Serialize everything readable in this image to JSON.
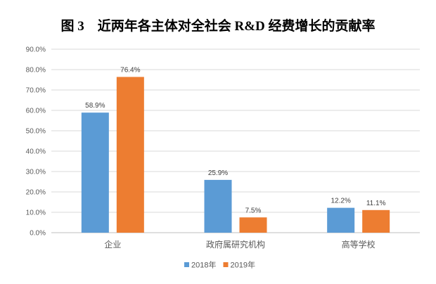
{
  "chart_data": {
    "type": "bar",
    "title": "图 3　近两年各主体对全社会 R&D 经费增长的贡献率",
    "categories": [
      "企业",
      "政府属研究机构",
      "高等学校"
    ],
    "series": [
      {
        "name": "2018年",
        "values": [
          58.9,
          25.9,
          12.2
        ],
        "color": "#5B9BD5"
      },
      {
        "name": "2019年",
        "values": [
          76.4,
          7.5,
          11.1
        ],
        "color": "#ED7D31"
      }
    ],
    "ylim": [
      0,
      90
    ],
    "yticks": [
      0,
      10,
      20,
      30,
      40,
      50,
      60,
      70,
      80,
      90
    ],
    "ytick_format": "%.1f%",
    "grid": true,
    "legend": "bottom",
    "xlabel": "",
    "ylabel": ""
  }
}
